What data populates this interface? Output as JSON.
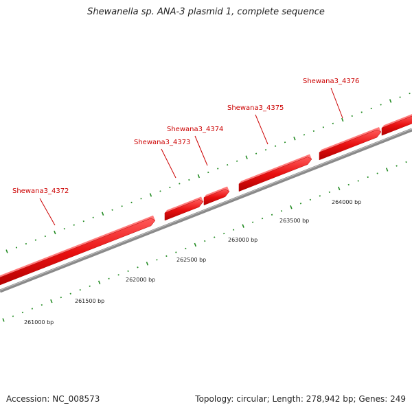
{
  "title": "Shewanella sp. ANA-3 plasmid 1, complete sequence",
  "footer": {
    "accession": "Accession: NC_008573",
    "summary": "Topology: circular; Length: 278,942 bp; Genes: 249"
  },
  "genes": [
    {
      "label": "Shewana3_4372"
    },
    {
      "label": "Shewana3_4373"
    },
    {
      "label": "Shewana3_4374"
    },
    {
      "label": "Shewana3_4375"
    },
    {
      "label": "Shewana3_4376"
    }
  ],
  "scale_labels": [
    "261000 bp",
    "261500 bp",
    "262000 bp",
    "262500 bp",
    "263000 bp",
    "263500 bp",
    "264000 bp"
  ],
  "colors": {
    "gene_fill": "#ee1111",
    "gene_label": "#cc0000",
    "backbone": "#888888",
    "tick": "#228b22"
  }
}
